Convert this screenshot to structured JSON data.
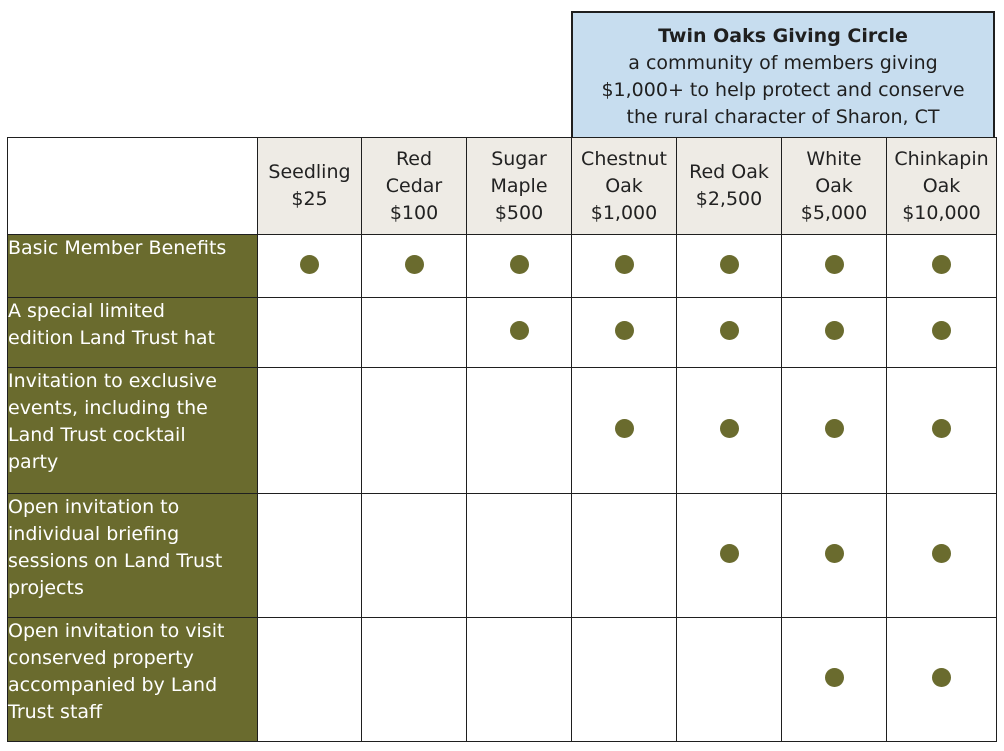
{
  "giving_circle": {
    "title": "Twin Oaks Giving Circle",
    "description_lines": [
      "a community of members giving",
      "$1,000+ to help protect and conserve",
      "the rural character of Sharon, CT"
    ]
  },
  "colors": {
    "olive": "#6a6b2e",
    "header_bg": "#eeebe5",
    "circle_bg": "#c7ddef"
  },
  "tiers": [
    {
      "name_lines": [
        "Seedling"
      ],
      "amount": "$25"
    },
    {
      "name_lines": [
        "Red",
        "Cedar"
      ],
      "amount": "$100"
    },
    {
      "name_lines": [
        "Sugar",
        "Maple"
      ],
      "amount": "$500"
    },
    {
      "name_lines": [
        "Chestnut",
        "Oak"
      ],
      "amount": "$1,000"
    },
    {
      "name_lines": [
        "Red Oak"
      ],
      "amount": "$2,500"
    },
    {
      "name_lines": [
        "White",
        "Oak"
      ],
      "amount": "$5,000"
    },
    {
      "name_lines": [
        "Chinkapin",
        "Oak"
      ],
      "amount": "$10,000"
    }
  ],
  "benefits": [
    {
      "label_lines": [
        "Basic Member Benefits"
      ],
      "included": [
        true,
        true,
        true,
        true,
        true,
        true,
        true
      ]
    },
    {
      "label_lines": [
        "A special limited",
        "edition Land Trust hat"
      ],
      "included": [
        false,
        false,
        true,
        true,
        true,
        true,
        true
      ]
    },
    {
      "label_lines": [
        "Invitation to exclusive",
        "events, including the",
        "Land Trust cocktail",
        "party"
      ],
      "included": [
        false,
        false,
        false,
        true,
        true,
        true,
        true
      ]
    },
    {
      "label_lines": [
        "Open invitation to",
        "individual briefing",
        "sessions on Land Trust",
        "projects"
      ],
      "included": [
        false,
        false,
        false,
        false,
        true,
        true,
        true
      ]
    },
    {
      "label_lines": [
        "Open invitation to visit",
        "conserved property",
        "accompanied by Land",
        "Trust staff"
      ],
      "included": [
        false,
        false,
        false,
        false,
        false,
        true,
        true
      ]
    }
  ]
}
